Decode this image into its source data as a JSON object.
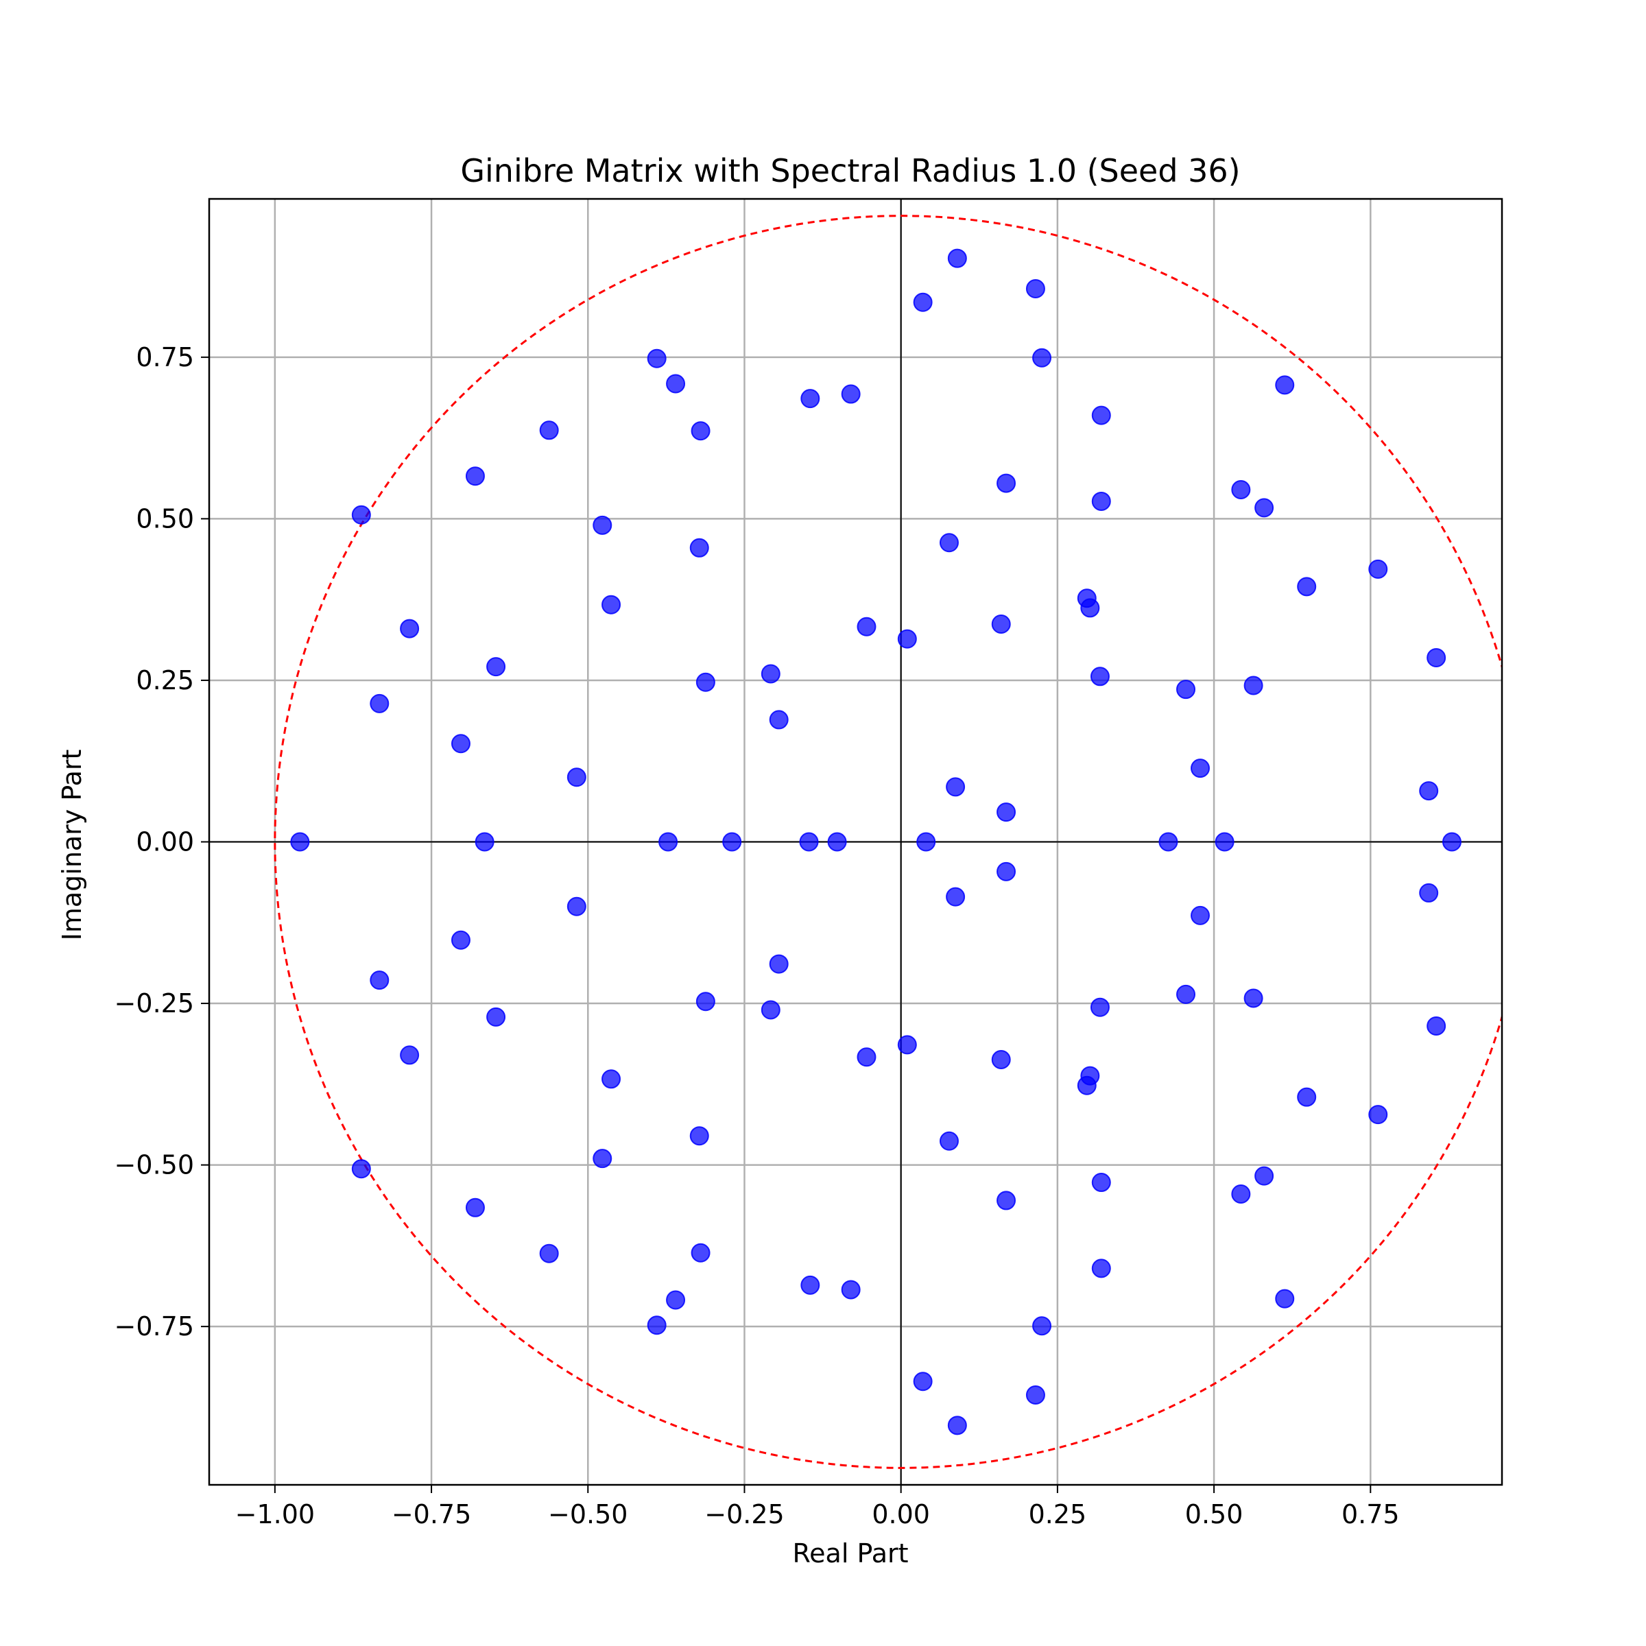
{
  "chart_data": {
    "type": "scatter",
    "title": "Ginibre Matrix with Spectral Radius 1.0 (Seed 36)",
    "xlabel": "Real Part",
    "ylabel": "Imaginary Part",
    "xlim": [
      -1.105,
      0.96
    ],
    "ylim": [
      -0.995,
      0.995
    ],
    "xticks": [
      -1.0,
      -0.75,
      -0.5,
      -0.25,
      0.0,
      0.25,
      0.5,
      0.75
    ],
    "xtick_labels": [
      "−1.00",
      "−0.75",
      "−0.50",
      "−0.25",
      "0.00",
      "0.25",
      "0.50",
      "0.75"
    ],
    "yticks": [
      -0.75,
      -0.5,
      -0.25,
      0.0,
      0.25,
      0.5,
      0.75
    ],
    "ytick_labels": [
      "−0.75",
      "−0.50",
      "−0.25",
      "0.00",
      "0.25",
      "0.50",
      "0.75"
    ],
    "grid": true,
    "zero_lines": true,
    "reference_circle": {
      "radius": 1.0,
      "color": "#ff0000",
      "style": "dashed"
    },
    "marker_color": "#0000ff",
    "series": [
      {
        "points": [
          [
            0.09,
            0.903
          ],
          [
            0.09,
            -0.903
          ],
          [
            0.035,
            0.835
          ],
          [
            0.035,
            -0.835
          ],
          [
            0.215,
            0.856
          ],
          [
            0.215,
            -0.856
          ],
          [
            0.225,
            0.749
          ],
          [
            0.225,
            -0.749
          ],
          [
            -0.39,
            0.748
          ],
          [
            -0.39,
            -0.748
          ],
          [
            -0.36,
            0.709
          ],
          [
            -0.36,
            -0.709
          ],
          [
            0.613,
            0.707
          ],
          [
            0.613,
            -0.707
          ],
          [
            -0.08,
            0.693
          ],
          [
            -0.08,
            -0.693
          ],
          [
            -0.145,
            0.686
          ],
          [
            -0.145,
            -0.686
          ],
          [
            0.32,
            0.66
          ],
          [
            0.32,
            -0.66
          ],
          [
            -0.562,
            0.637
          ],
          [
            -0.562,
            -0.637
          ],
          [
            -0.32,
            0.636
          ],
          [
            -0.32,
            -0.636
          ],
          [
            -0.68,
            0.566
          ],
          [
            -0.68,
            -0.566
          ],
          [
            0.168,
            0.555
          ],
          [
            0.168,
            -0.555
          ],
          [
            0.543,
            0.545
          ],
          [
            0.543,
            -0.545
          ],
          [
            0.32,
            0.527
          ],
          [
            0.32,
            -0.527
          ],
          [
            0.58,
            0.517
          ],
          [
            0.58,
            -0.517
          ],
          [
            -0.862,
            0.506
          ],
          [
            -0.862,
            -0.506
          ],
          [
            -0.477,
            0.49
          ],
          [
            -0.477,
            -0.49
          ],
          [
            0.077,
            0.463
          ],
          [
            0.077,
            -0.463
          ],
          [
            -0.322,
            0.455
          ],
          [
            -0.322,
            -0.455
          ],
          [
            0.762,
            0.422
          ],
          [
            0.762,
            -0.422
          ],
          [
            0.648,
            0.395
          ],
          [
            0.648,
            -0.395
          ],
          [
            0.297,
            0.377
          ],
          [
            0.297,
            -0.377
          ],
          [
            0.302,
            0.362
          ],
          [
            0.302,
            -0.362
          ],
          [
            -0.463,
            0.367
          ],
          [
            -0.463,
            -0.367
          ],
          [
            0.16,
            0.337
          ],
          [
            0.16,
            -0.337
          ],
          [
            -0.055,
            0.333
          ],
          [
            -0.055,
            -0.333
          ],
          [
            -0.785,
            0.33
          ],
          [
            -0.785,
            -0.33
          ],
          [
            0.01,
            0.314
          ],
          [
            0.01,
            -0.314
          ],
          [
            0.855,
            0.285
          ],
          [
            0.855,
            -0.285
          ],
          [
            -0.647,
            0.271
          ],
          [
            -0.647,
            -0.271
          ],
          [
            -0.208,
            0.26
          ],
          [
            -0.208,
            -0.26
          ],
          [
            0.318,
            0.256
          ],
          [
            0.318,
            -0.256
          ],
          [
            -0.312,
            0.247
          ],
          [
            -0.312,
            -0.247
          ],
          [
            0.563,
            0.242
          ],
          [
            0.563,
            -0.242
          ],
          [
            0.455,
            0.236
          ],
          [
            0.455,
            -0.236
          ],
          [
            -0.833,
            0.214
          ],
          [
            -0.833,
            -0.214
          ],
          [
            -0.195,
            0.189
          ],
          [
            -0.195,
            -0.189
          ],
          [
            -0.703,
            0.152
          ],
          [
            -0.703,
            -0.152
          ],
          [
            0.478,
            0.114
          ],
          [
            0.478,
            -0.114
          ],
          [
            -0.518,
            0.1
          ],
          [
            -0.518,
            -0.1
          ],
          [
            0.087,
            0.085
          ],
          [
            0.087,
            -0.085
          ],
          [
            0.843,
            0.079
          ],
          [
            0.843,
            -0.079
          ],
          [
            0.168,
            0.046
          ],
          [
            0.168,
            -0.046
          ],
          [
            -0.96,
            0.0
          ],
          [
            -0.665,
            0.0
          ],
          [
            -0.372,
            0.0
          ],
          [
            -0.27,
            0.0
          ],
          [
            -0.147,
            0.0
          ],
          [
            -0.102,
            0.0
          ],
          [
            0.04,
            0.0
          ],
          [
            0.427,
            0.0
          ],
          [
            0.517,
            0.0
          ],
          [
            0.88,
            0.0
          ]
        ]
      }
    ]
  }
}
